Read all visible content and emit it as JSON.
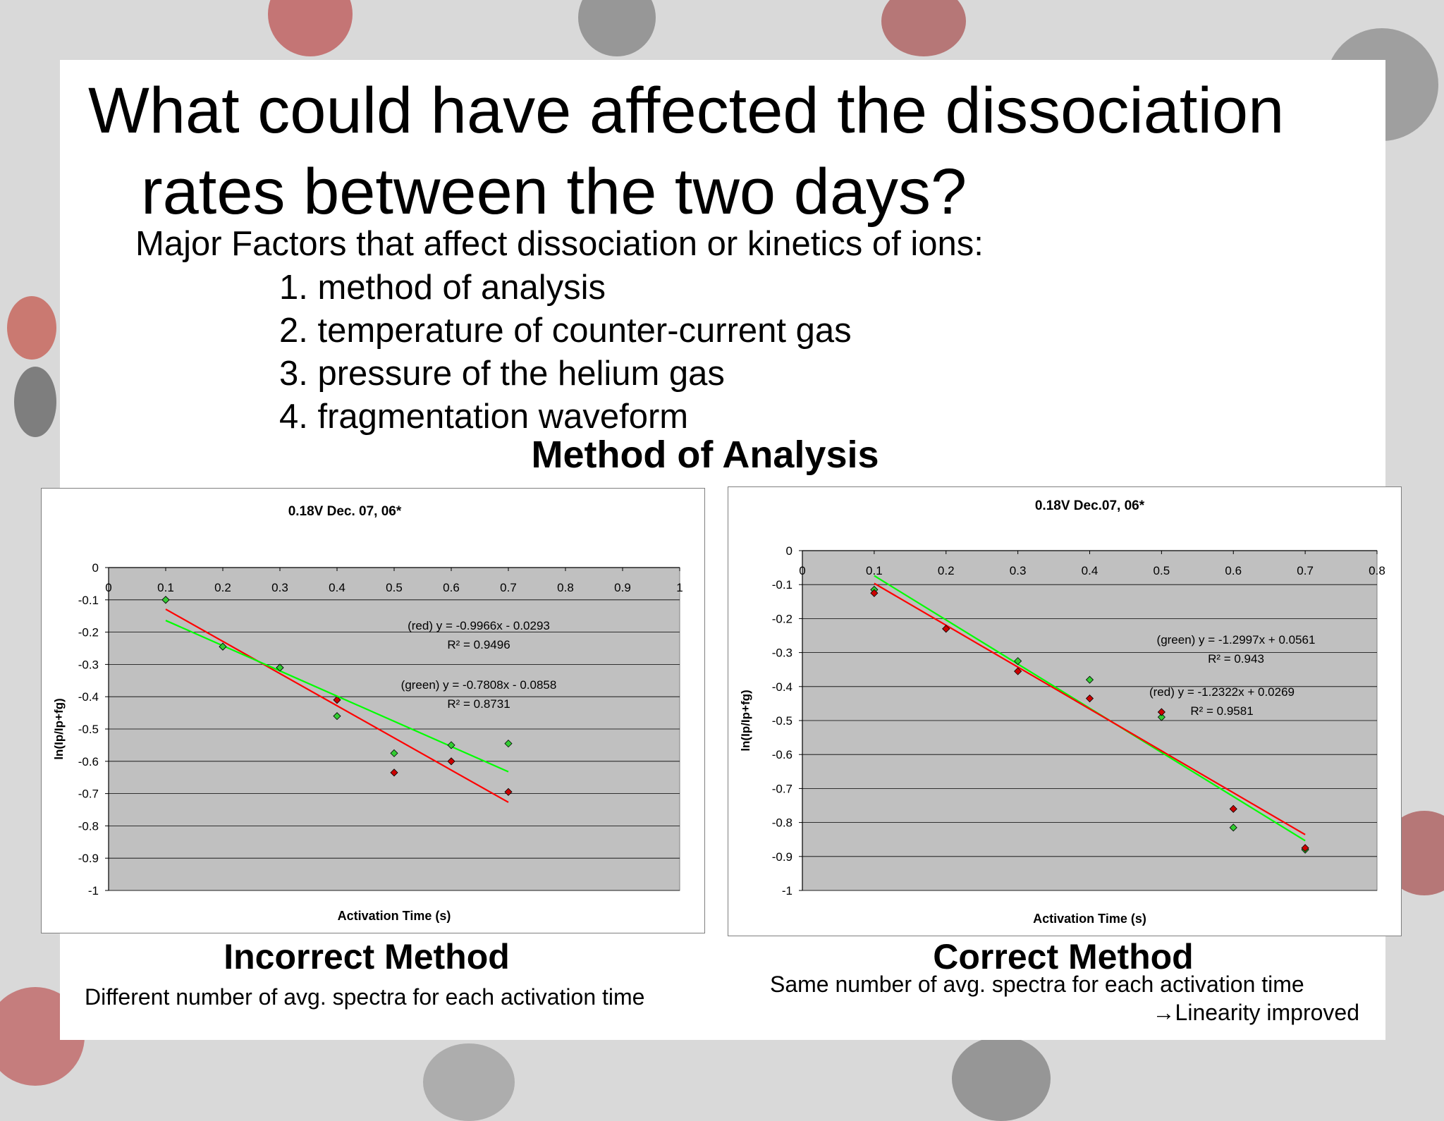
{
  "slide": {
    "title_line1": "What could have affected the dissociation",
    "title_line2": "rates between the two days?",
    "subtitle": "Major Factors that affect dissociation or kinetics of ions:",
    "factors": [
      "1. method of analysis",
      "2. temperature of counter-current gas",
      "3. pressure of the helium gas",
      "4. fragmentation waveform"
    ],
    "section_heading": "Method of Analysis",
    "left_caption": {
      "heading": "Incorrect Method",
      "text": "Different number of avg. spectra for each activation time"
    },
    "right_caption": {
      "heading": "Correct Method",
      "text": "Same number of avg. spectra for each activation time",
      "note": "→Linearity improved"
    }
  },
  "colors": {
    "plot_bg": "#c0c0c0",
    "red": "#ff0000",
    "green": "#00ff00",
    "red_marker": "#cc0000",
    "green_marker": "#33cc33"
  },
  "chart_data": [
    {
      "type": "scatter",
      "title": "0.18V Dec. 07, 06*",
      "xlabel": "Activation Time (s)",
      "ylabel": "ln(Ip/Ip+fg)",
      "xlim": [
        0,
        1
      ],
      "ylim": [
        -1,
        0
      ],
      "xticks": [
        "0",
        "0.1",
        "0.2",
        "0.3",
        "0.4",
        "0.5",
        "0.6",
        "0.7",
        "0.8",
        "0.9",
        "1"
      ],
      "yticks": [
        "0",
        "-0.1",
        "-0.2",
        "-0.3",
        "-0.4",
        "-0.5",
        "-0.6",
        "-0.7",
        "-0.8",
        "-0.9",
        "-1"
      ],
      "grid": true,
      "series": [
        {
          "color": "red",
          "x": [
            0.1,
            0.2,
            0.3,
            0.4,
            0.5,
            0.6,
            0.7
          ],
          "y": [
            -0.1,
            -0.245,
            -0.31,
            -0.41,
            -0.635,
            -0.6,
            -0.695
          ],
          "trendline": {
            "slope": -0.9966,
            "intercept": -0.0293
          },
          "equation": "(red) y = -0.9966x - 0.0293",
          "r2": "R² = 0.9496"
        },
        {
          "color": "green",
          "x": [
            0.1,
            0.2,
            0.3,
            0.4,
            0.5,
            0.6,
            0.7
          ],
          "y": [
            -0.1,
            -0.245,
            -0.31,
            -0.46,
            -0.575,
            -0.55,
            -0.545
          ],
          "trendline": {
            "slope": -0.7808,
            "intercept": -0.0858
          },
          "equation": "(green) y = -0.7808x - 0.0858",
          "r2": "R² = 0.8731"
        }
      ]
    },
    {
      "type": "scatter",
      "title": "0.18V Dec.07, 06*",
      "xlabel": "Activation Time (s)",
      "ylabel": "ln(Ip/Ip+fg)",
      "xlim": [
        0,
        0.8
      ],
      "ylim": [
        -1,
        0
      ],
      "xticks": [
        "0",
        "0.1",
        "0.2",
        "0.3",
        "0.4",
        "0.5",
        "0.6",
        "0.7",
        "0.8"
      ],
      "yticks": [
        "0",
        "-0.1",
        "-0.2",
        "-0.3",
        "-0.4",
        "-0.5",
        "-0.6",
        "-0.7",
        "-0.8",
        "-0.9",
        "-1"
      ],
      "grid": true,
      "series": [
        {
          "color": "green",
          "x": [
            0.1,
            0.2,
            0.3,
            0.4,
            0.5,
            0.6,
            0.7
          ],
          "y": [
            -0.115,
            -0.23,
            -0.325,
            -0.38,
            -0.49,
            -0.815,
            -0.88
          ],
          "trendline": {
            "slope": -1.2997,
            "intercept": 0.0561
          },
          "equation": "(green) y = -1.2997x + 0.0561",
          "r2": "R² = 0.943"
        },
        {
          "color": "red",
          "x": [
            0.1,
            0.2,
            0.3,
            0.4,
            0.5,
            0.6,
            0.7
          ],
          "y": [
            -0.125,
            -0.23,
            -0.355,
            -0.435,
            -0.475,
            -0.76,
            -0.875
          ],
          "trendline": {
            "slope": -1.2322,
            "intercept": 0.0269
          },
          "equation": "(red) y = -1.2322x + 0.0269",
          "r2": "R² = 0.9581"
        }
      ]
    }
  ]
}
